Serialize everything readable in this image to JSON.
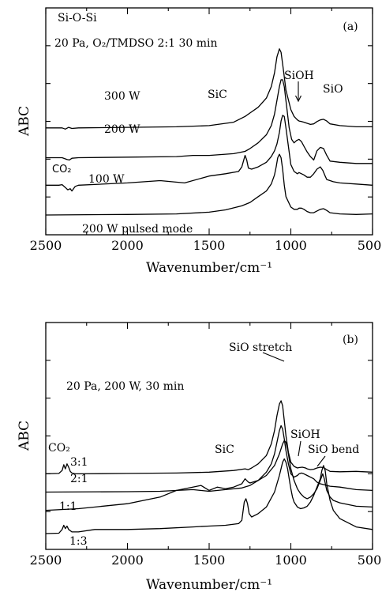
{
  "chart_data": [
    {
      "type": "line",
      "panel_label": "(a)",
      "xlabel": "Wavenumber/cm⁻¹",
      "ylabel": "ABC",
      "xlim": [
        2500,
        500
      ],
      "x_reversed": true,
      "xticks": [
        2500,
        2000,
        1500,
        1000,
        500
      ],
      "condition": "20 Pa, O₂/TMDSO 2:1 30 min",
      "series_labels": [
        "300 W",
        "200 W",
        "100 W",
        "200 W pulsed mode"
      ],
      "peak_labels": [
        "Si-O-Si",
        "SiC",
        "SiOH",
        "SiO",
        "CO₂"
      ],
      "series": [
        {
          "name": "300 W",
          "offset": 7.6,
          "x": [
            2500,
            2400,
            2380,
            2360,
            2340,
            2300,
            2000,
            1700,
            1500,
            1350,
            1280,
            1250,
            1200,
            1150,
            1120,
            1100,
            1085,
            1070,
            1060,
            1045,
            1030,
            1000,
            980,
            960,
            950,
            935,
            920,
            900,
            880,
            860,
            840,
            820,
            800,
            780,
            760,
            700,
            600,
            500
          ],
          "y": [
            0,
            0,
            -0.1,
            0.05,
            -0.05,
            0,
            0.05,
            0.1,
            0.2,
            0.5,
            1.0,
            1.3,
            1.8,
            2.6,
            3.6,
            4.8,
            6.2,
            6.9,
            6.6,
            5.0,
            3.3,
            1.6,
            1.0,
            0.7,
            0.6,
            0.55,
            0.5,
            0.4,
            0.3,
            0.35,
            0.55,
            0.7,
            0.75,
            0.6,
            0.35,
            0.2,
            0.1,
            0.1
          ]
        },
        {
          "name": "200 W",
          "offset": 5.0,
          "x": [
            2500,
            2400,
            2370,
            2355,
            2340,
            2300,
            2000,
            1700,
            1600,
            1500,
            1350,
            1280,
            1250,
            1200,
            1150,
            1120,
            1100,
            1085,
            1070,
            1060,
            1050,
            1040,
            1025,
            1010,
            995,
            980,
            965,
            950,
            935,
            920,
            900,
            880,
            860,
            840,
            820,
            800,
            780,
            760,
            700,
            600,
            500
          ],
          "y": [
            0,
            0,
            -0.15,
            -0.2,
            -0.05,
            0,
            0.05,
            0.1,
            0.2,
            0.2,
            0.35,
            0.55,
            0.8,
            1.3,
            2.0,
            2.8,
            3.8,
            5.0,
            6.2,
            6.8,
            6.8,
            6.2,
            4.4,
            2.6,
            1.6,
            1.3,
            1.5,
            1.6,
            1.4,
            1.0,
            0.5,
            0.1,
            -0.2,
            0.6,
            0.9,
            0.8,
            0.2,
            -0.3,
            -0.4,
            -0.5,
            -0.5
          ]
        },
        {
          "name": "100 W",
          "offset": 2.6,
          "x": [
            2500,
            2420,
            2400,
            2380,
            2365,
            2350,
            2340,
            2320,
            2300,
            2000,
            1800,
            1650,
            1500,
            1400,
            1320,
            1300,
            1280,
            1270,
            1260,
            1240,
            1200,
            1150,
            1120,
            1100,
            1085,
            1070,
            1060,
            1050,
            1040,
            1030,
            1015,
            1000,
            980,
            960,
            950,
            935,
            920,
            900,
            880,
            860,
            840,
            820,
            805,
            790,
            780,
            760,
            740,
            700,
            600,
            500
          ],
          "y": [
            0,
            0,
            0.05,
            -0.2,
            -0.4,
            -0.3,
            -0.5,
            -0.1,
            0,
            0.2,
            0.4,
            0.2,
            0.8,
            1.0,
            1.2,
            1.6,
            2.6,
            2.2,
            1.5,
            1.4,
            1.6,
            2.0,
            2.5,
            3.0,
            3.6,
            4.6,
            5.6,
            6.1,
            6.0,
            5.0,
            3.4,
            1.8,
            1.2,
            1.0,
            1.1,
            1.0,
            0.9,
            0.7,
            0.7,
            1.0,
            1.4,
            1.6,
            1.3,
            0.8,
            0.5,
            0.4,
            0.3,
            0.2,
            0.1,
            0.0
          ]
        },
        {
          "name": "200 W pulsed mode",
          "offset": 0.0,
          "x": [
            2500,
            2000,
            1700,
            1500,
            1400,
            1300,
            1250,
            1200,
            1150,
            1120,
            1100,
            1090,
            1080,
            1070,
            1060,
            1050,
            1040,
            1030,
            1000,
            980,
            960,
            950,
            935,
            920,
            900,
            880,
            860,
            840,
            820,
            800,
            780,
            760,
            700,
            600,
            500
          ],
          "y": [
            0,
            0.05,
            0.1,
            0.25,
            0.45,
            0.8,
            1.1,
            1.6,
            2.1,
            2.7,
            3.5,
            4.2,
            5.0,
            5.3,
            5.0,
            4.0,
            2.6,
            1.6,
            0.7,
            0.5,
            0.5,
            0.6,
            0.6,
            0.5,
            0.3,
            0.2,
            0.2,
            0.35,
            0.5,
            0.55,
            0.4,
            0.2,
            0.1,
            0.05,
            0.1
          ]
        }
      ]
    },
    {
      "type": "line",
      "panel_label": "(b)",
      "xlabel": "Wavenumber/cm⁻¹",
      "ylabel": "ABC",
      "xlim": [
        2500,
        500
      ],
      "x_reversed": true,
      "xticks": [
        2500,
        2000,
        1500,
        1000,
        500
      ],
      "condition": "20 Pa, 200 W, 30 min",
      "series_labels": [
        "3:1",
        "2:1",
        "1:1",
        "1:3"
      ],
      "peak_labels": [
        "SiO stretch",
        "SiC",
        "SiOH",
        "SiO bend",
        "CO₂"
      ],
      "series": [
        {
          "name": "3:1",
          "offset": 7.2,
          "x": [
            2500,
            2420,
            2400,
            2390,
            2380,
            2370,
            2360,
            2350,
            2340,
            2320,
            2300,
            2000,
            1700,
            1500,
            1350,
            1280,
            1260,
            1240,
            1200,
            1150,
            1120,
            1100,
            1085,
            1070,
            1060,
            1050,
            1040,
            1030,
            1015,
            1000,
            980,
            960,
            950,
            930,
            910,
            900,
            880,
            860,
            840,
            820,
            800,
            780,
            760,
            700,
            600,
            500
          ],
          "y": [
            0,
            0.05,
            0.4,
            1.1,
            0.6,
            1.2,
            0.8,
            0.3,
            0.1,
            0,
            0,
            0.05,
            0.1,
            0.2,
            0.4,
            0.6,
            0.5,
            0.7,
            1.2,
            2.2,
            3.6,
            5.2,
            7.0,
            8.4,
            8.8,
            8.2,
            6.4,
            4.6,
            2.6,
            1.4,
            0.9,
            0.7,
            0.75,
            0.8,
            0.7,
            0.6,
            0.5,
            0.55,
            0.7,
            0.8,
            0.75,
            0.5,
            0.3,
            0.25,
            0.3,
            0.2
          ]
        },
        {
          "name": "2:1",
          "offset": 5.0,
          "x": [
            2500,
            2000,
            1800,
            1600,
            1500,
            1400,
            1300,
            1250,
            1200,
            1150,
            1120,
            1100,
            1085,
            1070,
            1060,
            1050,
            1040,
            1030,
            1015,
            1000,
            980,
            960,
            950,
            935,
            920,
            900,
            880,
            860,
            840,
            820,
            800,
            780,
            760,
            700,
            600,
            500
          ],
          "y": [
            0,
            0.05,
            0.1,
            0.3,
            0.1,
            0.3,
            0.5,
            0.8,
            1.4,
            2.4,
            3.4,
            4.6,
            6.0,
            7.4,
            8.0,
            7.6,
            6.4,
            5.0,
            3.4,
            2.2,
            1.8,
            2.0,
            2.2,
            2.3,
            2.2,
            2.0,
            1.8,
            1.6,
            1.2,
            1.0,
            0.9,
            0.8,
            0.7,
            0.6,
            0.3,
            0.2
          ]
        },
        {
          "name": "1:1",
          "offset": 2.8,
          "x": [
            2500,
            2300,
            2000,
            1800,
            1700,
            1600,
            1550,
            1500,
            1450,
            1400,
            1350,
            1300,
            1280,
            1270,
            1260,
            1250,
            1200,
            1150,
            1100,
            1070,
            1050,
            1040,
            1030,
            1020,
            1010,
            1000,
            980,
            960,
            940,
            920,
            900,
            880,
            860,
            840,
            820,
            805,
            795,
            780,
            760,
            740,
            700,
            600,
            500
          ],
          "y": [
            0,
            0.2,
            0.8,
            1.6,
            2.4,
            2.8,
            3.0,
            2.4,
            2.8,
            2.6,
            2.8,
            3.2,
            3.8,
            3.6,
            3.4,
            3.3,
            3.6,
            4.2,
            5.4,
            6.8,
            8.0,
            8.4,
            8.2,
            7.4,
            6.2,
            5.0,
            3.6,
            2.6,
            2.0,
            1.6,
            1.4,
            1.6,
            2.0,
            2.6,
            3.6,
            4.4,
            3.8,
            2.4,
            1.6,
            1.2,
            0.9,
            0.5,
            0.4
          ]
        },
        {
          "name": "1:3",
          "offset": 0.0,
          "x": [
            2500,
            2420,
            2400,
            2390,
            2380,
            2370,
            2360,
            2340,
            2300,
            2200,
            2000,
            1800,
            1600,
            1500,
            1400,
            1320,
            1300,
            1285,
            1275,
            1265,
            1255,
            1240,
            1200,
            1150,
            1100,
            1070,
            1050,
            1040,
            1030,
            1020,
            1010,
            1000,
            990,
            980,
            960,
            940,
            920,
            900,
            880,
            860,
            840,
            820,
            810,
            800,
            790,
            780,
            760,
            740,
            700,
            600,
            500
          ],
          "y": [
            0,
            0.05,
            0.5,
            1.0,
            0.6,
            0.9,
            0.5,
            0.2,
            0.2,
            0.5,
            0.5,
            0.6,
            0.8,
            0.9,
            1.0,
            1.2,
            1.6,
            3.8,
            4.2,
            3.6,
            2.4,
            2.0,
            2.4,
            3.2,
            5.0,
            7.0,
            8.6,
            9.0,
            8.6,
            7.8,
            6.6,
            5.4,
            4.4,
            3.8,
            3.2,
            3.0,
            3.1,
            3.3,
            3.8,
            4.6,
            5.6,
            6.6,
            7.6,
            8.2,
            7.6,
            6.0,
            4.0,
            2.8,
            1.8,
            0.8,
            0.5
          ]
        }
      ]
    }
  ]
}
